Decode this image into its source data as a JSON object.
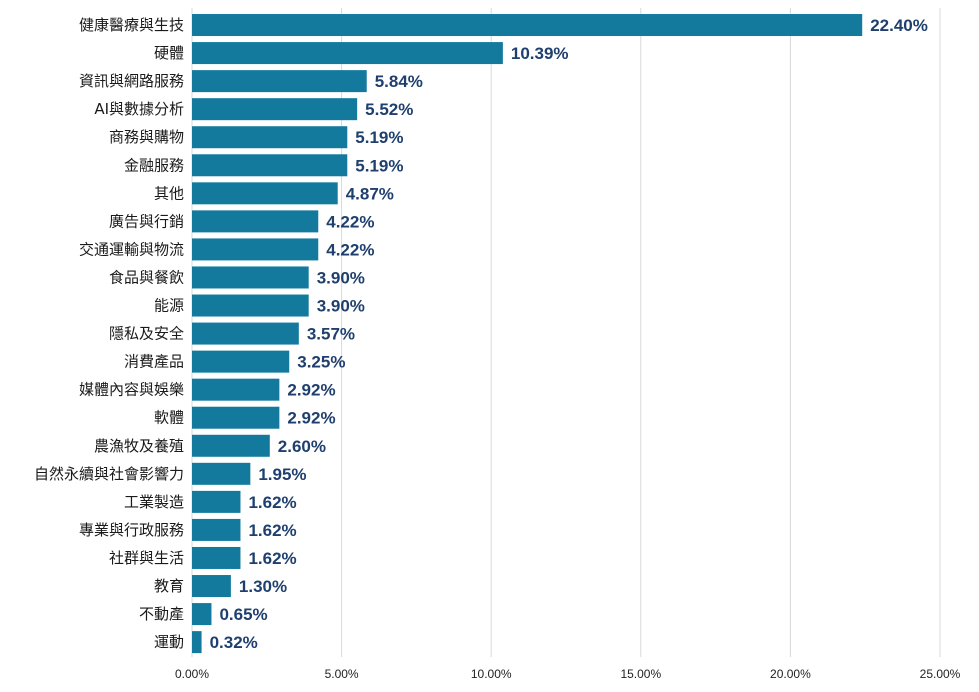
{
  "chart_data": {
    "type": "bar",
    "orientation": "horizontal",
    "title": "",
    "xlabel": "",
    "ylabel": "",
    "xlim": [
      0,
      25
    ],
    "x_ticks": [
      0,
      5,
      10,
      15,
      20,
      25
    ],
    "x_tick_labels": [
      "0.00%",
      "5.00%",
      "10.00%",
      "15.00%",
      "20.00%",
      "25.00%"
    ],
    "grid": "vertical",
    "bar_color": "#137a9e",
    "value_label_color": "#1f3f6e",
    "categories": [
      "健康醫療與生技",
      "硬體",
      "資訊與網路服務",
      "AI與數據分析",
      "商務與購物",
      "金融服務",
      "其他",
      "廣告與行銷",
      "交通運輸與物流",
      "食品與餐飲",
      "能源",
      "隱私及安全",
      "消費產品",
      "媒體內容與娛樂",
      "軟體",
      "農漁牧及養殖",
      "自然永續與社會影響力",
      "工業製造",
      "專業與行政服務",
      "社群與生活",
      "教育",
      "不動產",
      "運動"
    ],
    "values": [
      22.4,
      10.39,
      5.84,
      5.52,
      5.19,
      5.19,
      4.87,
      4.22,
      4.22,
      3.9,
      3.9,
      3.57,
      3.25,
      2.92,
      2.92,
      2.6,
      1.95,
      1.62,
      1.62,
      1.62,
      1.3,
      0.65,
      0.32
    ],
    "value_labels": [
      "22.40%",
      "10.39%",
      "5.84%",
      "5.52%",
      "5.19%",
      "5.19%",
      "4.87%",
      "4.22%",
      "4.22%",
      "3.90%",
      "3.90%",
      "3.57%",
      "3.25%",
      "2.92%",
      "2.92%",
      "2.60%",
      "1.95%",
      "1.62%",
      "1.62%",
      "1.62%",
      "1.30%",
      "0.65%",
      "0.32%"
    ]
  }
}
